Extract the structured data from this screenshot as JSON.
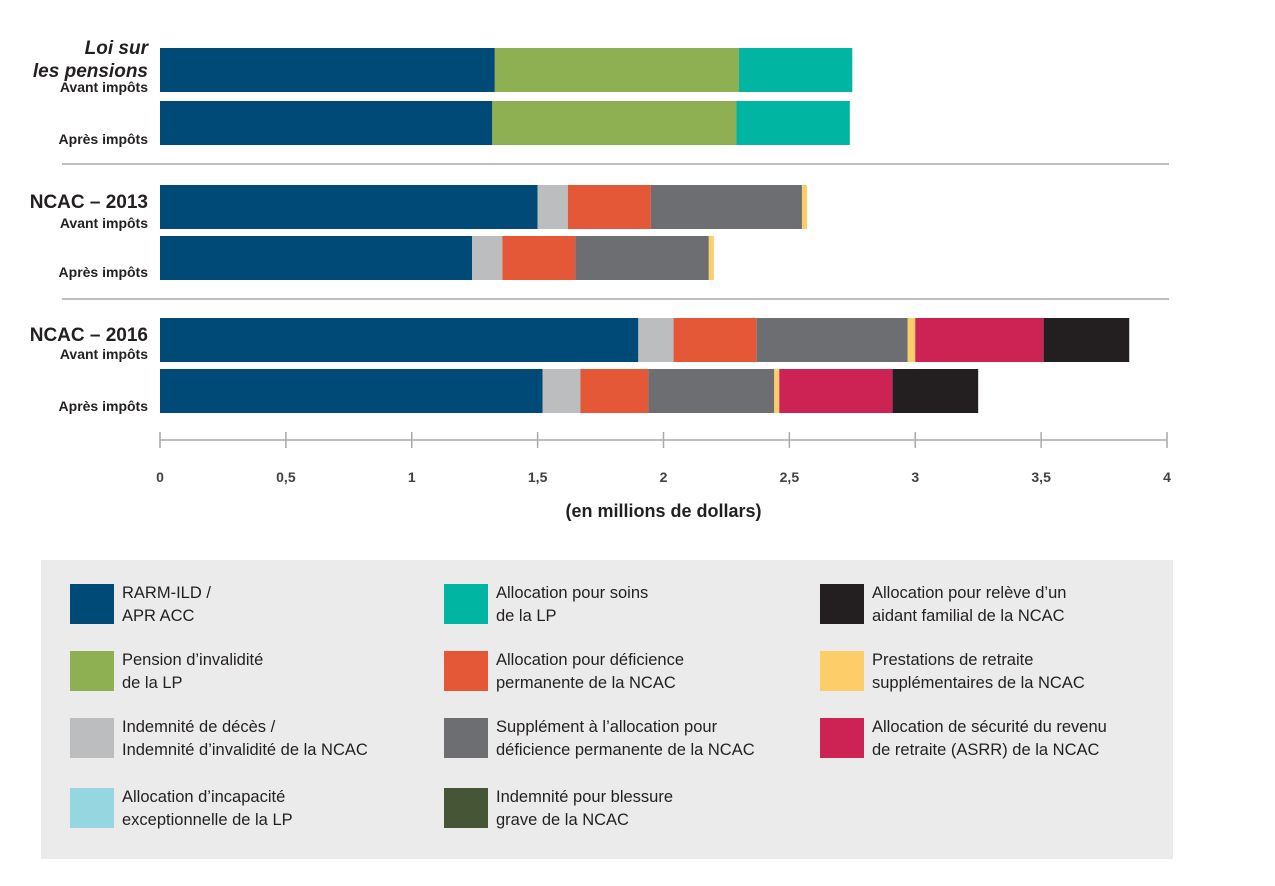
{
  "chart_data": {
    "type": "bar",
    "orientation": "horizontal",
    "stacked": true,
    "xlabel": "(en millions de dollars)",
    "xlim": [
      0,
      4
    ],
    "x_ticks": [
      "0",
      "0,5",
      "1",
      "1,5",
      "2",
      "2,5",
      "3",
      "3,5",
      "4"
    ],
    "groups": [
      {
        "title_lines": [
          "Loi sur",
          "les pensions"
        ],
        "italic": true,
        "bars": [
          {
            "label": "Avant impôts",
            "segments": [
              {
                "series": "rarm",
                "value": 1.33
              },
              {
                "series": "pension",
                "value": 0.97
              },
              {
                "series": "soins",
                "value": 0.45
              }
            ]
          },
          {
            "label": "Après impôts",
            "segments": [
              {
                "series": "rarm",
                "value": 1.32
              },
              {
                "series": "pension",
                "value": 0.97
              },
              {
                "series": "soins",
                "value": 0.45
              }
            ]
          }
        ]
      },
      {
        "title_lines": [
          "NCAC – 2013"
        ],
        "italic": false,
        "bars": [
          {
            "label": "Avant impôts",
            "segments": [
              {
                "series": "rarm",
                "value": 1.5
              },
              {
                "series": "deces",
                "value": 0.12
              },
              {
                "series": "deficience",
                "value": 0.33
              },
              {
                "series": "supplement",
                "value": 0.6
              },
              {
                "series": "retraite",
                "value": 0.02
              }
            ]
          },
          {
            "label": "Après impôts",
            "segments": [
              {
                "series": "rarm",
                "value": 1.24
              },
              {
                "series": "deces",
                "value": 0.12
              },
              {
                "series": "deficience",
                "value": 0.29
              },
              {
                "series": "supplement",
                "value": 0.53
              },
              {
                "series": "retraite",
                "value": 0.02
              }
            ]
          }
        ]
      },
      {
        "title_lines": [
          "NCAC – 2016"
        ],
        "italic": false,
        "bars": [
          {
            "label": "Avant impôts",
            "segments": [
              {
                "series": "rarm",
                "value": 1.9
              },
              {
                "series": "deces",
                "value": 0.14
              },
              {
                "series": "deficience",
                "value": 0.33
              },
              {
                "series": "supplement",
                "value": 0.6
              },
              {
                "series": "retraite",
                "value": 0.03
              },
              {
                "series": "asrr",
                "value": 0.51
              },
              {
                "series": "aidant",
                "value": 0.34
              }
            ]
          },
          {
            "label": "Après impôts",
            "segments": [
              {
                "series": "rarm",
                "value": 1.52
              },
              {
                "series": "deces",
                "value": 0.15
              },
              {
                "series": "deficience",
                "value": 0.27
              },
              {
                "series": "supplement",
                "value": 0.5
              },
              {
                "series": "retraite",
                "value": 0.02
              },
              {
                "series": "asrr",
                "value": 0.45
              },
              {
                "series": "aidant",
                "value": 0.34
              }
            ]
          }
        ]
      }
    ],
    "series": [
      {
        "key": "rarm",
        "name": "RARM-ILD /\nAPR ACC",
        "color": "#004a77"
      },
      {
        "key": "soins",
        "name": "Allocation pour soins\nde la LP",
        "color": "#00b5a1"
      },
      {
        "key": "aidant",
        "name": "Allocation pour relève d’un\naidant familial de la NCAC",
        "color": "#231f20"
      },
      {
        "key": "pension",
        "name": "Pension d’invalidité\nde la LP",
        "color": "#8fb052"
      },
      {
        "key": "deficience",
        "name": "Allocation pour déficience\npermanente de la NCAC",
        "color": "#e45737"
      },
      {
        "key": "retraite",
        "name": "Prestations de retraite\nsupplémentaires de la NCAC",
        "color": "#fdcd6a"
      },
      {
        "key": "deces",
        "name": "Indemnité de décès /\nIndemnité d’invalidité de la NCAC",
        "color": "#bcbdbf"
      },
      {
        "key": "supplement",
        "name": "Supplément à l’allocation pour\ndéficience permanente de la NCAC",
        "color": "#6d6e71"
      },
      {
        "key": "asrr",
        "name": "Allocation de sécurité du revenu\nde retraite (ASRR) de la NCAC",
        "color": "#cc2254"
      },
      {
        "key": "incapacite",
        "name": "Allocation d’incapacité\nexceptionnelle de la LP",
        "color": "#96d6e0"
      },
      {
        "key": "blessure",
        "name": "Indemnité pour blessure\ngrave de la NCAC",
        "color": "#475537"
      }
    ],
    "grid": false,
    "legend_position": "bottom"
  }
}
